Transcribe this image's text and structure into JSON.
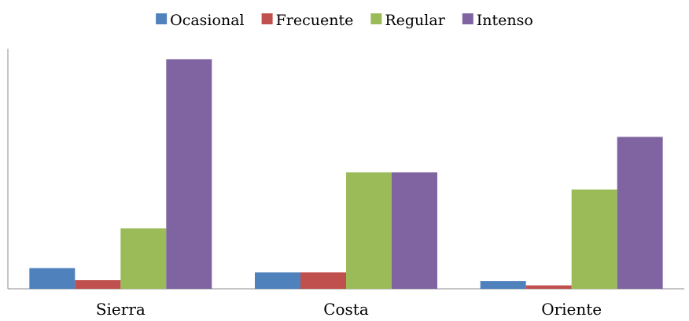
{
  "chart_data": {
    "type": "bar",
    "title": "",
    "xlabel": "",
    "ylabel": "",
    "categories": [
      "Sierra",
      "Costa",
      "Oriente"
    ],
    "series": [
      {
        "name": "Ocasional",
        "color": "#4F81BD",
        "values": [
          24,
          19,
          9
        ]
      },
      {
        "name": "Frecuente",
        "color": "#C0504D",
        "values": [
          10,
          19,
          4
        ]
      },
      {
        "name": "Regular",
        "color": "#9BBB59",
        "values": [
          70,
          135,
          115
        ]
      },
      {
        "name": "Intenso",
        "color": "#8064A2",
        "values": [
          266,
          135,
          176
        ]
      }
    ],
    "ylim": [
      0,
      300
    ],
    "y_axis_visible": false,
    "grid": false,
    "legend_position": "top"
  }
}
